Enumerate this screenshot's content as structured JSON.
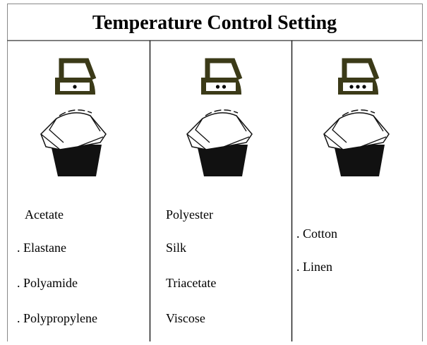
{
  "title": "Temperature Control Setting",
  "columns": [
    {
      "items": [
        "Acetate",
        ". Elastane",
        ". Polyamide",
        ". Polypropylene"
      ]
    },
    {
      "items": [
        "Polyester",
        "Silk",
        "Triacetate",
        "Viscose"
      ]
    },
    {
      "items": [
        ". Cotton",
        ". Linen"
      ]
    }
  ]
}
